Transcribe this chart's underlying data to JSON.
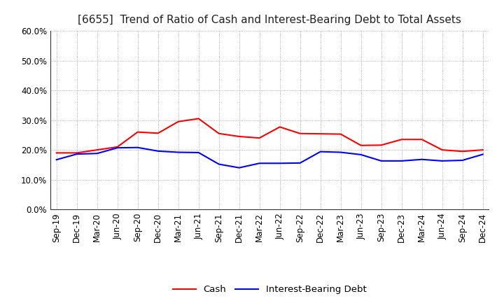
{
  "title": "[6655]  Trend of Ratio of Cash and Interest-Bearing Debt to Total Assets",
  "x_labels": [
    "Sep-19",
    "Dec-19",
    "Mar-20",
    "Jun-20",
    "Sep-20",
    "Dec-20",
    "Mar-21",
    "Jun-21",
    "Sep-21",
    "Dec-21",
    "Mar-22",
    "Jun-22",
    "Sep-22",
    "Dec-22",
    "Mar-23",
    "Jun-23",
    "Sep-23",
    "Dec-23",
    "Mar-24",
    "Jun-24",
    "Sep-24",
    "Dec-24"
  ],
  "cash": [
    0.19,
    0.19,
    0.2,
    0.21,
    0.26,
    0.256,
    0.295,
    0.305,
    0.255,
    0.245,
    0.24,
    0.277,
    0.255,
    0.254,
    0.253,
    0.215,
    0.216,
    0.235,
    0.235,
    0.2,
    0.195,
    0.2
  ],
  "interest_bearing_debt": [
    0.167,
    0.186,
    0.188,
    0.207,
    0.208,
    0.196,
    0.192,
    0.191,
    0.152,
    0.14,
    0.155,
    0.155,
    0.156,
    0.194,
    0.192,
    0.184,
    0.163,
    0.163,
    0.168,
    0.163,
    0.165,
    0.185
  ],
  "cash_color": "#ff0000",
  "debt_color": "#0000ff",
  "ylim": [
    0.0,
    0.6
  ],
  "yticks": [
    0.0,
    0.1,
    0.2,
    0.3,
    0.4,
    0.5,
    0.6
  ],
  "background_color": "#ffffff",
  "grid_color": "#999999",
  "legend_cash": "Cash",
  "legend_debt": "Interest-Bearing Debt",
  "title_fontsize": 11,
  "axis_fontsize": 8.5
}
